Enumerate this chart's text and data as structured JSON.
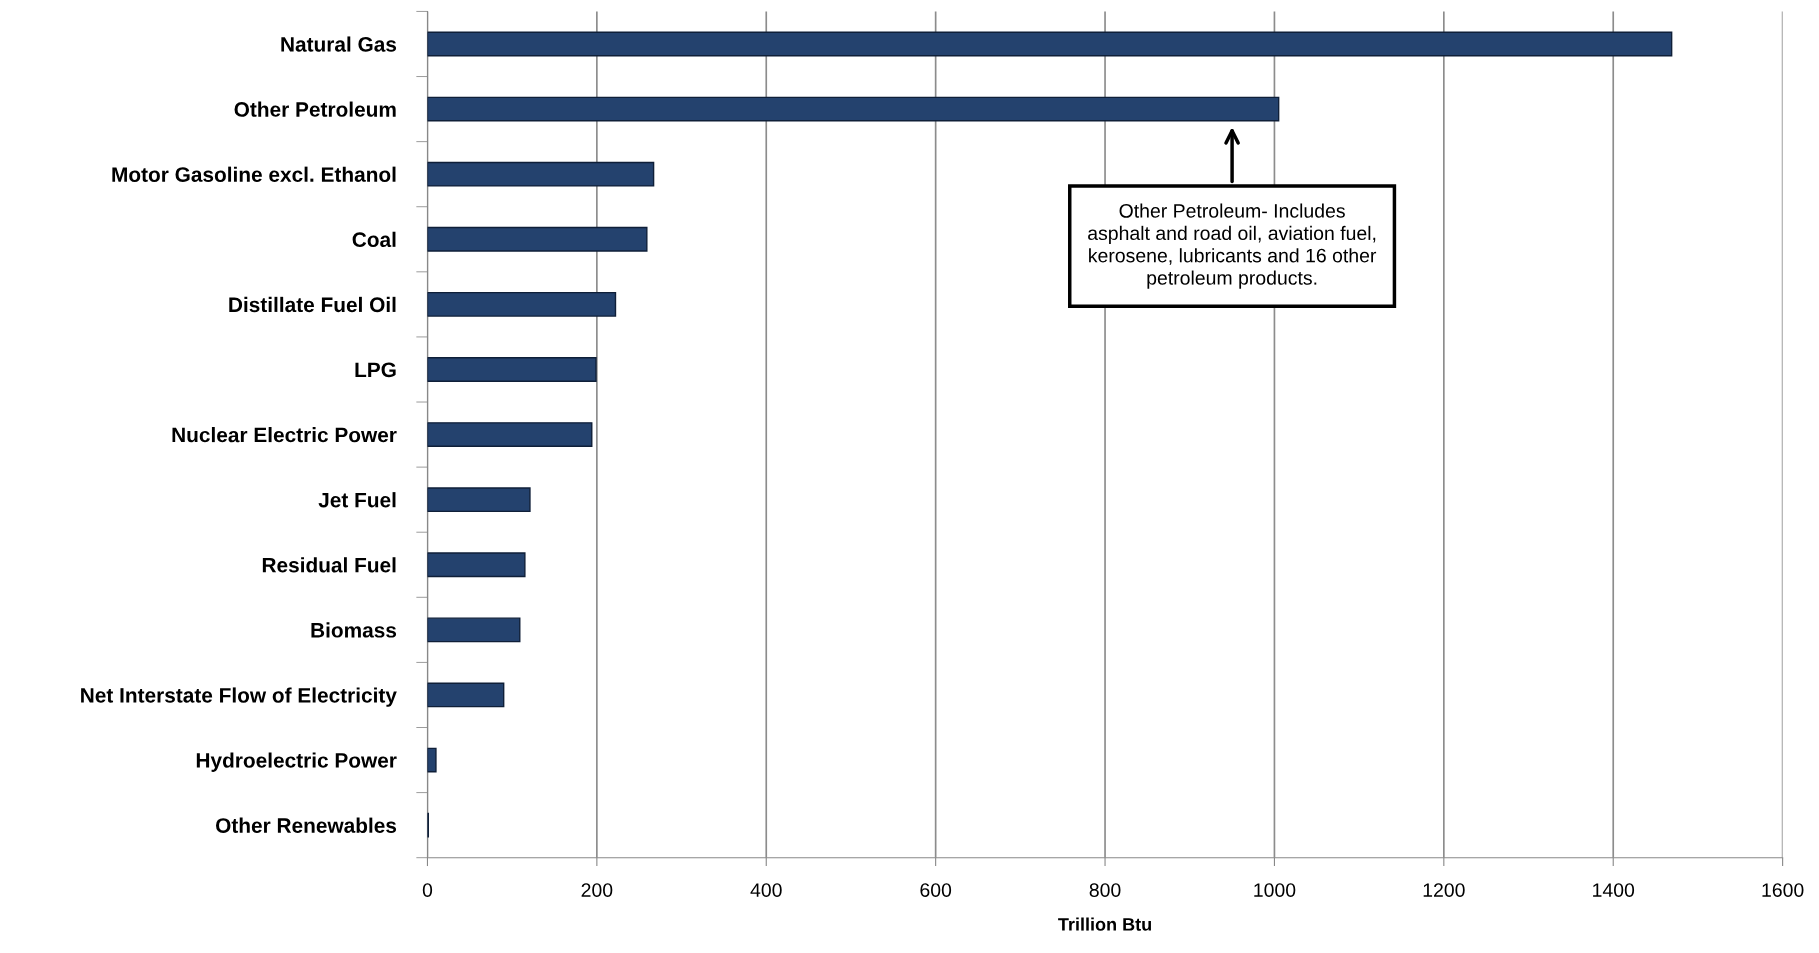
{
  "chart_data": {
    "type": "bar",
    "orientation": "horizontal",
    "xlabel": "Trillion Btu",
    "categories": [
      "Natural Gas",
      "Other Petroleum",
      "Motor Gasoline excl. Ethanol",
      "Coal",
      "Distillate Fuel Oil",
      "LPG",
      "Nuclear Electric Power",
      "Jet Fuel",
      "Residual Fuel",
      "Biomass",
      "Net Interstate Flow of Electricity",
      "Hydroelectric Power",
      "Other Renewables"
    ],
    "values": [
      1469,
      1005,
      267,
      259,
      222,
      199,
      194,
      121,
      115,
      109,
      90,
      10,
      1
    ],
    "color": "#24426e",
    "xlim": [
      0,
      1600
    ],
    "xticks": [
      0,
      200,
      400,
      600,
      800,
      1000,
      1200,
      1400,
      1600
    ],
    "grid": "x",
    "legend": false,
    "annotations": [
      {
        "text": "Other Petroleum- Includes\nasphalt and road oil, aviation fuel,\nkerosene, lubricants and 16 other\npetroleum products.",
        "x": 950,
        "y": "Other Petroleum"
      }
    ]
  }
}
